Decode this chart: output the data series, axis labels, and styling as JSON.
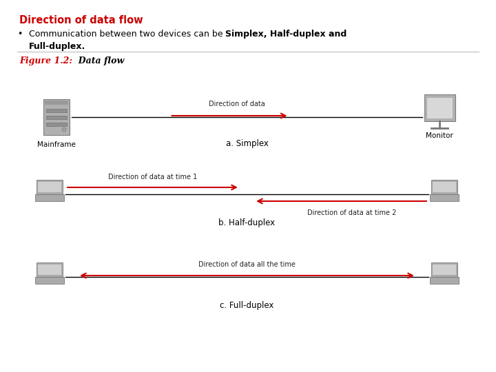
{
  "title": "Direction of data flow",
  "title_color": "#cc0000",
  "bullet_normal": "Communication between two devices can be ",
  "bullet_bold": "Simplex, Half-duplex and",
  "bullet_bold2": "Full-duplex.",
  "fig_label_red": "Figure 1.2:",
  "fig_label_black": "  Data flow",
  "bg_color": "#ffffff",
  "arrow_color": "#cc0000",
  "line_color": "#000000",
  "sep_color": "#bbbbbb",
  "simplex_arrow_label": "Direction of data",
  "simplex_label": "a. Simplex",
  "simplex_left": "Mainframe",
  "simplex_right": "Monitor",
  "hd_arrow1_label": "Direction of data at time 1",
  "hd_arrow2_label": "Direction of data at time 2",
  "hd_label": "b. Half-duplex",
  "fd_arrow_label": "Direction of data all the time",
  "fd_label": "c. Full-duplex"
}
